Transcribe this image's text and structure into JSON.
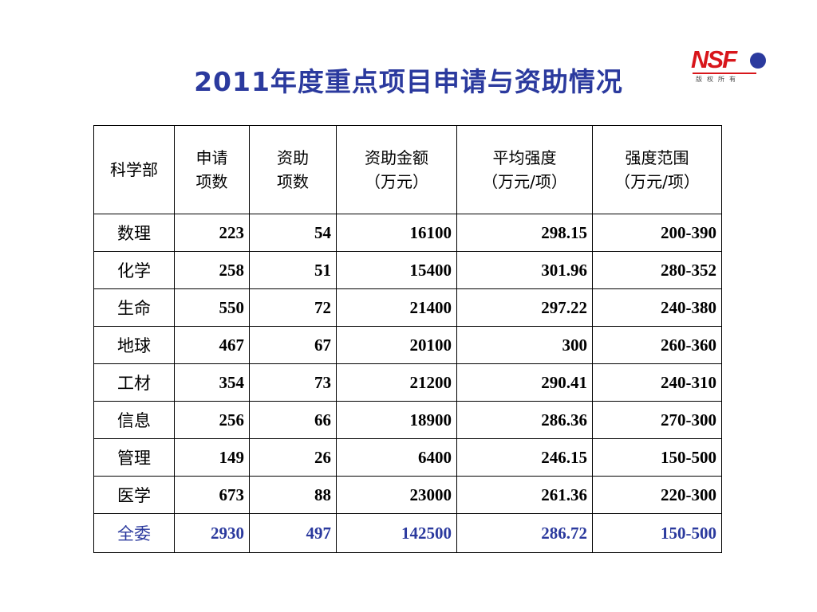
{
  "title": "2011年度重点项目申请与资助情况",
  "logo": {
    "text": "NSF",
    "subtitle": "版权所有",
    "colors": {
      "red": "#d8161b",
      "blue": "#2b3a9e"
    }
  },
  "table": {
    "headers": [
      {
        "line1": "科学部",
        "line2": ""
      },
      {
        "line1": "申请",
        "line2": "项数"
      },
      {
        "line1": "资助",
        "line2": "项数"
      },
      {
        "line1": "资助金额",
        "line2": "（万元）"
      },
      {
        "line1": "平均强度",
        "line2": "（万元/项）"
      },
      {
        "line1": "强度范围",
        "line2": "（万元/项）"
      }
    ],
    "rows": [
      [
        "数理",
        "223",
        "54",
        "16100",
        "298.15",
        "200-390"
      ],
      [
        "化学",
        "258",
        "51",
        "15400",
        "301.96",
        "280-352"
      ],
      [
        "生命",
        "550",
        "72",
        "21400",
        "297.22",
        "240-380"
      ],
      [
        "地球",
        "467",
        "67",
        "20100",
        "300",
        "260-360"
      ],
      [
        "工材",
        "354",
        "73",
        "21200",
        "290.41",
        "240-310"
      ],
      [
        "信息",
        "256",
        "66",
        "18900",
        "286.36",
        "270-300"
      ],
      [
        "管理",
        "149",
        "26",
        "6400",
        "246.15",
        "150-500"
      ],
      [
        "医学",
        "673",
        "88",
        "23000",
        "261.36",
        "220-300"
      ]
    ],
    "total": [
      "全委",
      "2930",
      "497",
      "142500",
      "286.72",
      "150-500"
    ]
  },
  "colors": {
    "accent": "#2b3a9e"
  }
}
